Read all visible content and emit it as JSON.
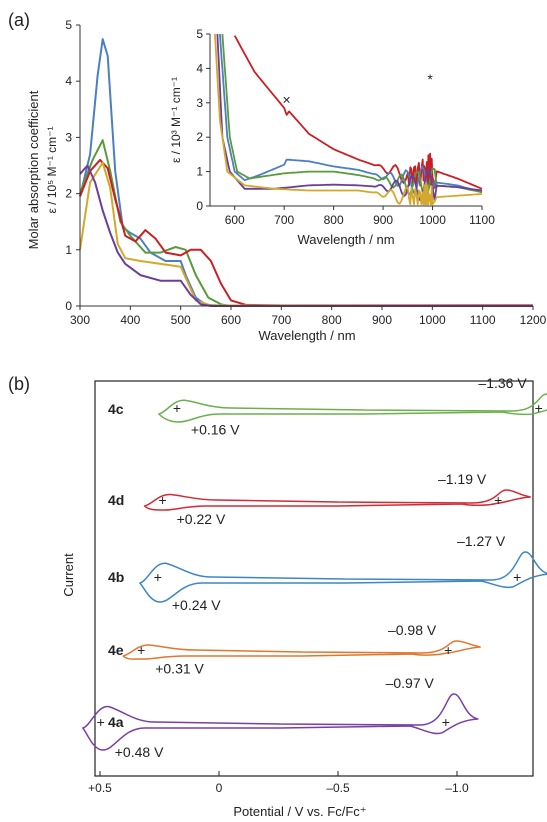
{
  "panels": {
    "a_label": "(a)",
    "b_label": "(b)"
  },
  "chart_data": [
    {
      "type": "line",
      "panel": "(a)",
      "ylabel_line1": "Molar absorption coefficient",
      "ylabel_line2": "ε / 10⁵ M⁻¹ cm⁻¹",
      "xlabel": "Wavelength / nm",
      "xlim": [
        300,
        1200
      ],
      "ylim": [
        0,
        5
      ],
      "xticks": [
        "300",
        "400",
        "500",
        "600",
        "700",
        "800",
        "900",
        "1000",
        "1100",
        "1200"
      ],
      "yticks": [
        "0",
        "1",
        "2",
        "3",
        "4",
        "5"
      ],
      "series": [
        {
          "color": "#4a7fc1",
          "points": [
            [
              300,
              1.95
            ],
            [
              320,
              2.7
            ],
            [
              335,
              4.1
            ],
            [
              345,
              4.75
            ],
            [
              355,
              4.45
            ],
            [
              370,
              2.4
            ],
            [
              385,
              1.4
            ],
            [
              400,
              1.3
            ],
            [
              420,
              1.2
            ],
            [
              440,
              0.95
            ],
            [
              470,
              0.8
            ],
            [
              500,
              0.8
            ],
            [
              510,
              0.55
            ],
            [
              530,
              0.15
            ],
            [
              550,
              0.02
            ],
            [
              600,
              0
            ],
            [
              1200,
              0
            ]
          ]
        },
        {
          "color": "#5a9a3c",
          "points": [
            [
              300,
              2.0
            ],
            [
              325,
              2.6
            ],
            [
              345,
              2.95
            ],
            [
              360,
              2.4
            ],
            [
              380,
              1.5
            ],
            [
              400,
              1.25
            ],
            [
              430,
              0.95
            ],
            [
              460,
              0.95
            ],
            [
              490,
              1.05
            ],
            [
              510,
              1.0
            ],
            [
              530,
              0.55
            ],
            [
              555,
              0.15
            ],
            [
              580,
              0.03
            ],
            [
              600,
              0
            ],
            [
              1200,
              0
            ]
          ]
        },
        {
          "color": "#c91f25",
          "points": [
            [
              300,
              1.95
            ],
            [
              320,
              2.4
            ],
            [
              340,
              2.6
            ],
            [
              355,
              2.45
            ],
            [
              370,
              1.9
            ],
            [
              390,
              1.25
            ],
            [
              410,
              1.15
            ],
            [
              430,
              1.35
            ],
            [
              450,
              1.2
            ],
            [
              470,
              0.95
            ],
            [
              500,
              0.9
            ],
            [
              520,
              1.0
            ],
            [
              540,
              1.0
            ],
            [
              560,
              0.8
            ],
            [
              580,
              0.4
            ],
            [
              600,
              0.1
            ],
            [
              630,
              0.02
            ],
            [
              700,
              0.01
            ],
            [
              1200,
              0.01
            ]
          ]
        },
        {
          "color": "#d4a82a",
          "points": [
            [
              300,
              1.0
            ],
            [
              320,
              2.2
            ],
            [
              345,
              2.55
            ],
            [
              360,
              2.1
            ],
            [
              375,
              1.1
            ],
            [
              390,
              0.85
            ],
            [
              420,
              0.8
            ],
            [
              460,
              0.75
            ],
            [
              500,
              0.7
            ],
            [
              510,
              0.5
            ],
            [
              530,
              0.1
            ],
            [
              560,
              0.01
            ],
            [
              1200,
              0
            ]
          ]
        },
        {
          "color": "#6a3e9a",
          "points": [
            [
              300,
              2.35
            ],
            [
              315,
              2.5
            ],
            [
              330,
              2.2
            ],
            [
              345,
              1.7
            ],
            [
              360,
              1.3
            ],
            [
              375,
              0.95
            ],
            [
              390,
              0.75
            ],
            [
              420,
              0.55
            ],
            [
              460,
              0.45
            ],
            [
              500,
              0.45
            ],
            [
              520,
              0.2
            ],
            [
              540,
              0.03
            ],
            [
              560,
              0
            ],
            [
              1200,
              0
            ]
          ]
        }
      ]
    },
    {
      "type": "line",
      "panel": "(a) inset",
      "ylabel": "ε / 10³ M⁻¹ cm⁻¹",
      "xlabel": "Wavelength / nm",
      "xlim": [
        550,
        1100
      ],
      "ylim": [
        0,
        5
      ],
      "xticks": [
        "600",
        "700",
        "800",
        "900",
        "1000",
        "1100"
      ],
      "yticks": [
        "0",
        "1",
        "2",
        "3",
        "4",
        "5"
      ],
      "annotations": [
        {
          "text": "×",
          "x": 705,
          "y": 2.95
        },
        {
          "text": "*",
          "x": 995,
          "y": 3.55
        }
      ],
      "series": [
        {
          "color": "#c91f25",
          "points": [
            [
              600,
              4.95
            ],
            [
              640,
              3.9
            ],
            [
              680,
              3.2
            ],
            [
              700,
              2.85
            ],
            [
              705,
              2.65
            ],
            [
              710,
              2.75
            ],
            [
              750,
              2.1
            ],
            [
              800,
              1.65
            ],
            [
              850,
              1.35
            ],
            [
              900,
              1.1
            ],
            [
              950,
              0.9
            ],
            [
              980,
              1.0
            ],
            [
              1000,
              1.05
            ],
            [
              1050,
              0.8
            ],
            [
              1100,
              0.5
            ]
          ]
        },
        {
          "color": "#4a7fc1",
          "points": [
            [
              570,
              5.0
            ],
            [
              585,
              2.0
            ],
            [
              600,
              1.0
            ],
            [
              620,
              0.75
            ],
            [
              650,
              0.9
            ],
            [
              700,
              1.2
            ],
            [
              705,
              1.35
            ],
            [
              750,
              1.3
            ],
            [
              800,
              1.15
            ],
            [
              850,
              1.05
            ],
            [
              900,
              0.85
            ],
            [
              950,
              0.75
            ],
            [
              1000,
              0.7
            ],
            [
              1050,
              0.6
            ],
            [
              1100,
              0.4
            ]
          ]
        },
        {
          "color": "#5a9a3c",
          "points": [
            [
              575,
              5.0
            ],
            [
              590,
              2.0
            ],
            [
              605,
              1.0
            ],
            [
              630,
              0.8
            ],
            [
              700,
              0.95
            ],
            [
              750,
              1.0
            ],
            [
              800,
              1.0
            ],
            [
              850,
              0.9
            ],
            [
              900,
              0.75
            ],
            [
              950,
              0.65
            ],
            [
              1000,
              0.6
            ],
            [
              1050,
              0.55
            ],
            [
              1100,
              0.4
            ]
          ]
        },
        {
          "color": "#6a3e9a",
          "points": [
            [
              565,
              5.0
            ],
            [
              575,
              2.0
            ],
            [
              590,
              1.0
            ],
            [
              620,
              0.5
            ],
            [
              680,
              0.5
            ],
            [
              750,
              0.6
            ],
            [
              800,
              0.62
            ],
            [
              850,
              0.6
            ],
            [
              900,
              0.55
            ],
            [
              950,
              0.55
            ],
            [
              1000,
              0.6
            ],
            [
              1050,
              0.55
            ],
            [
              1100,
              0.45
            ]
          ]
        },
        {
          "color": "#d4a82a",
          "points": [
            [
              560,
              5.0
            ],
            [
              570,
              2.5
            ],
            [
              585,
              1.0
            ],
            [
              620,
              0.6
            ],
            [
              680,
              0.5
            ],
            [
              750,
              0.45
            ],
            [
              850,
              0.45
            ],
            [
              900,
              0.35
            ],
            [
              950,
              0.25
            ],
            [
              980,
              0.2
            ],
            [
              1000,
              0.25
            ],
            [
              1050,
              0.3
            ],
            [
              1100,
              0.35
            ]
          ]
        }
      ]
    },
    {
      "type": "line",
      "panel": "(b)",
      "ylabel": "Current",
      "xlabel": "Potential / V vs. Fc/Fc⁺",
      "xlim": [
        0.75,
        -1.75
      ],
      "xticks": [
        "+0.5",
        "0",
        "–0.5",
        "–1.0",
        "–1.5"
      ],
      "voltammograms": [
        {
          "label": "4c",
          "color": "#6ab04c",
          "ox": "+0.16 V",
          "red": "–1.36 V",
          "e_ox": 0.16,
          "e_red": -1.36
        },
        {
          "label": "4d",
          "color": "#d12b37",
          "ox": "+0.22 V",
          "red": "–1.19 V",
          "e_ox": 0.22,
          "e_red": -1.19
        },
        {
          "label": "4b",
          "color": "#3d86c6",
          "ox": "+0.24 V",
          "red": "–1.27 V",
          "e_ox": 0.24,
          "e_red": -1.27
        },
        {
          "label": "4e",
          "color": "#e2762e",
          "ox": "+0.31 V",
          "red": "–0.98 V",
          "e_ox": 0.31,
          "e_red": -0.98
        },
        {
          "label": "4a",
          "color": "#7a3fa3",
          "ox": "+0.48 V",
          "red": "–0.97 V",
          "e_ox": 0.48,
          "e_red": -0.97
        }
      ]
    }
  ]
}
